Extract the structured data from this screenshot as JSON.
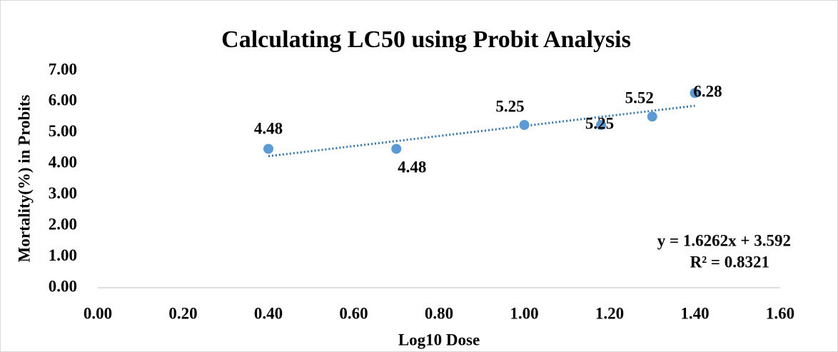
{
  "chart_data": {
    "type": "scatter",
    "title": "Calculating LC50 using Probit Analysis",
    "x_label": "Log10 Dose",
    "y_label": "Mortality(%) in Probits",
    "x": [
      0.4,
      0.7,
      1.0,
      1.18,
      1.3,
      1.4
    ],
    "values": [
      4.48,
      4.48,
      5.25,
      5.25,
      5.52,
      6.28
    ],
    "color": "#5b9bd5",
    "trendline": {
      "slope": 1.6262,
      "intercept": 3.592,
      "color": "#2e75b6",
      "equation": "y = 1.6262x + 3.592",
      "r_squared": "R² = 0.8321"
    },
    "xlim": [
      0,
      1.6
    ],
    "xticks": [
      {
        "value": 0,
        "label": "0.00"
      },
      {
        "value": 0.2,
        "label": "0.20"
      },
      {
        "value": 0.4,
        "label": "0.40"
      },
      {
        "value": 0.6,
        "label": "0.60"
      },
      {
        "value": 0.8,
        "label": "0.80"
      },
      {
        "value": 1.0,
        "label": "1.00"
      },
      {
        "value": 1.2,
        "label": "1.20"
      },
      {
        "value": 1.4,
        "label": "1.40"
      },
      {
        "value": 1.6,
        "label": "1.60"
      }
    ],
    "ylim": [
      0,
      7
    ],
    "yticks": [
      {
        "value": 0,
        "label": "0.00"
      },
      {
        "value": 1,
        "label": "1.00"
      },
      {
        "value": 2,
        "label": "2.00"
      },
      {
        "value": 3,
        "label": "3.00"
      },
      {
        "value": 4,
        "label": "4.00"
      },
      {
        "value": 5,
        "label": "5.00"
      },
      {
        "value": 6,
        "label": "6.00"
      },
      {
        "value": 7,
        "label": "7.00"
      }
    ],
    "grid": false
  }
}
